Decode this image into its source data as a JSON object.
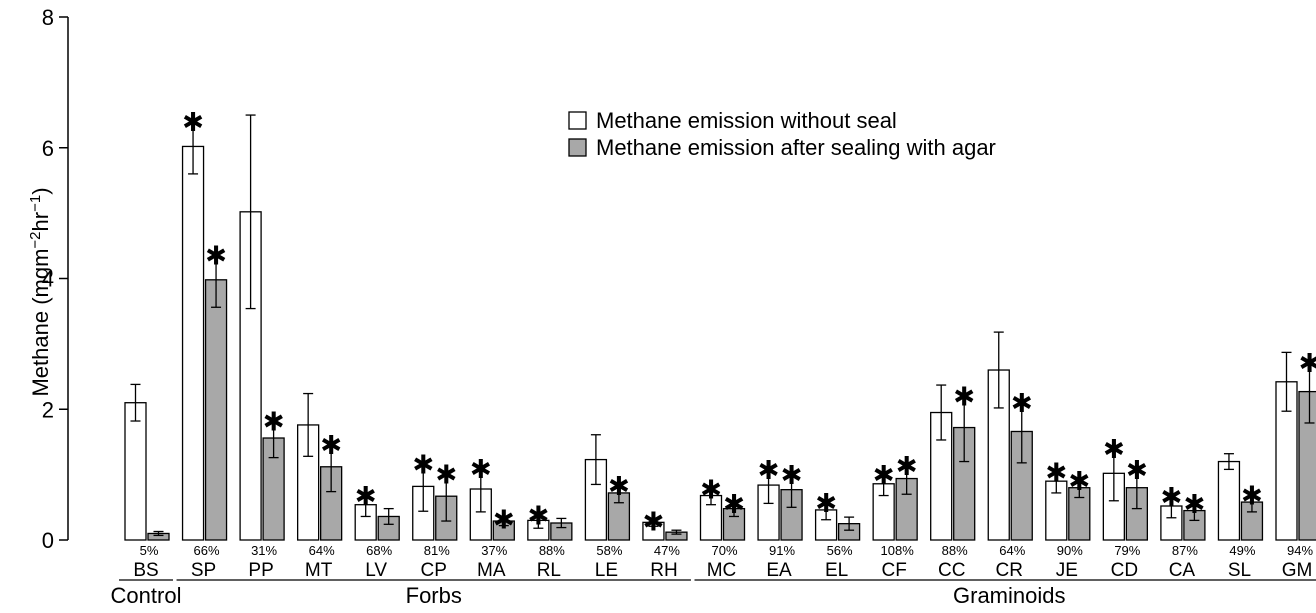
{
  "chart_data": {
    "type": "bar",
    "ylabel": "Methane (mgm",
    "ylabel_sup1": "−2",
    "ylabel_mid": "hr",
    "ylabel_sup2": "−1",
    "ylabel_end": ")",
    "ylim": [
      0,
      8
    ],
    "yticks": [
      0,
      2,
      4,
      6,
      8
    ],
    "grid": false,
    "legend_position": "top-center",
    "categories": [
      "BS",
      "SP",
      "PP",
      "MT",
      "LV",
      "CP",
      "MA",
      "RL",
      "LE",
      "RH",
      "MC",
      "EA",
      "EL",
      "CF",
      "CC",
      "CR",
      "JE",
      "CD",
      "CA",
      "SL",
      "GM"
    ],
    "percentages": [
      "5%",
      "66%",
      "31%",
      "64%",
      "68%",
      "81%",
      "37%",
      "88%",
      "58%",
      "47%",
      "70%",
      "91%",
      "56%",
      "108%",
      "88%",
      "64%",
      "90%",
      "79%",
      "87%",
      "49%",
      "94%"
    ],
    "groups": [
      {
        "label": "Control",
        "from": 0,
        "to": 0
      },
      {
        "label": "Forbs",
        "from": 1,
        "to": 9
      },
      {
        "label": "Graminoids",
        "from": 10,
        "to": 20
      }
    ],
    "series": [
      {
        "name": "Methane emission without seal",
        "color": "#ffffff",
        "values": [
          2.1,
          6.02,
          5.02,
          1.76,
          0.54,
          0.82,
          0.78,
          0.3,
          1.23,
          0.27,
          0.68,
          0.84,
          0.46,
          0.86,
          1.95,
          2.6,
          0.9,
          1.02,
          0.52,
          1.2,
          2.42
        ],
        "errors": [
          0.28,
          0.42,
          1.48,
          0.48,
          0.18,
          0.38,
          0.35,
          0.12,
          0.38,
          0.06,
          0.14,
          0.28,
          0.15,
          0.18,
          0.42,
          0.58,
          0.18,
          0.42,
          0.18,
          0.12,
          0.45
        ],
        "significant": [
          false,
          true,
          false,
          false,
          true,
          true,
          true,
          true,
          false,
          true,
          true,
          true,
          true,
          true,
          false,
          false,
          true,
          true,
          true,
          false,
          false
        ]
      },
      {
        "name": "Methane emission after sealing with agar",
        "color": "#a8a8a8",
        "values": [
          0.1,
          3.98,
          1.56,
          1.12,
          0.36,
          0.67,
          0.29,
          0.26,
          0.72,
          0.12,
          0.48,
          0.77,
          0.25,
          0.94,
          1.72,
          1.66,
          0.8,
          0.8,
          0.45,
          0.58,
          2.27
        ],
        "errors": [
          0.03,
          0.42,
          0.3,
          0.38,
          0.12,
          0.38,
          0.07,
          0.07,
          0.15,
          0.03,
          0.12,
          0.27,
          0.1,
          0.24,
          0.52,
          0.48,
          0.15,
          0.32,
          0.15,
          0.15,
          0.48
        ],
        "significant": [
          false,
          true,
          true,
          true,
          false,
          true,
          true,
          false,
          true,
          false,
          true,
          true,
          false,
          true,
          true,
          true,
          true,
          true,
          true,
          true,
          true
        ]
      }
    ]
  }
}
